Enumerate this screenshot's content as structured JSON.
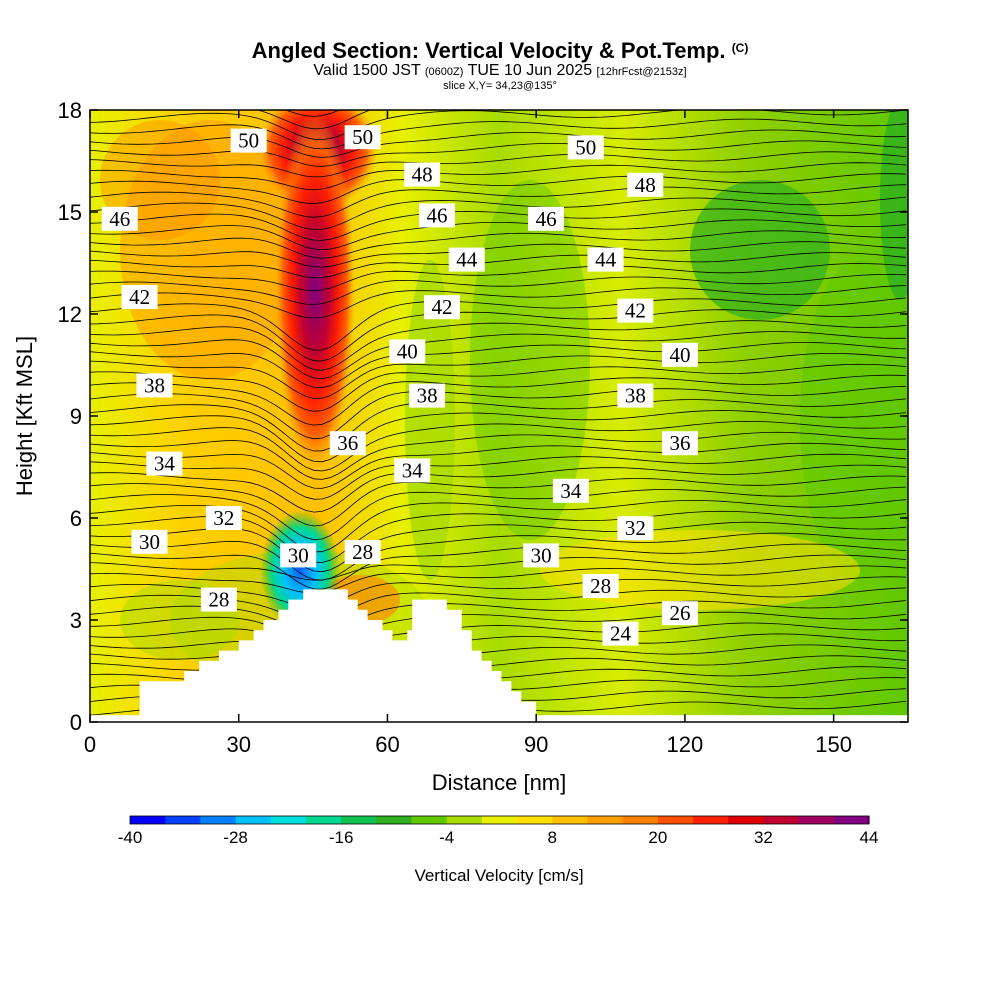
{
  "title": {
    "main": "Angled Section: Vertical Velocity & Pot.Temp.",
    "copyright": "(C)",
    "valid_prefix": "Valid 1500 JST",
    "valid_utc": "(0600Z)",
    "valid_date": "TUE 10 Jun 2025",
    "forecast": "[12hrFcst@2153z]",
    "slice": "slice X,Y= 34,23@135°"
  },
  "chart_data": {
    "type": "heatmap",
    "xlabel": "Distance [nm]",
    "ylabel": "Height [Kft MSL]",
    "xlim": [
      0,
      165
    ],
    "ylim": [
      0,
      18
    ],
    "xticks": [
      0,
      30,
      60,
      90,
      120,
      150
    ],
    "yticks": [
      0,
      3,
      6,
      9,
      12,
      15,
      18
    ],
    "colorbar": {
      "label": "Vertical Velocity [cm/s]",
      "ticks": [
        -40,
        -28,
        -16,
        -4,
        8,
        20,
        32,
        44
      ],
      "range": [
        -40,
        44
      ],
      "colors": [
        "#0000ff",
        "#0040ff",
        "#0080ff",
        "#00c0ff",
        "#00e0e0",
        "#00d890",
        "#10c050",
        "#30b020",
        "#60c800",
        "#a8dc00",
        "#e8f000",
        "#ffe000",
        "#ffc000",
        "#ffa000",
        "#ff8000",
        "#ff5000",
        "#ff2000",
        "#e00000",
        "#c00030",
        "#a00060",
        "#800080"
      ]
    },
    "contour_labels": [
      {
        "text": "50",
        "x": 32,
        "y": 17.1
      },
      {
        "text": "50",
        "x": 55,
        "y": 17.2
      },
      {
        "text": "50",
        "x": 100,
        "y": 16.9
      },
      {
        "text": "48",
        "x": 67,
        "y": 16.1
      },
      {
        "text": "48",
        "x": 112,
        "y": 15.8
      },
      {
        "text": "46",
        "x": 6,
        "y": 14.8
      },
      {
        "text": "46",
        "x": 70,
        "y": 14.9
      },
      {
        "text": "46",
        "x": 92,
        "y": 14.8
      },
      {
        "text": "44",
        "x": 76,
        "y": 13.6
      },
      {
        "text": "44",
        "x": 104,
        "y": 13.6
      },
      {
        "text": "42",
        "x": 10,
        "y": 12.5
      },
      {
        "text": "42",
        "x": 71,
        "y": 12.2
      },
      {
        "text": "42",
        "x": 110,
        "y": 12.1
      },
      {
        "text": "40",
        "x": 64,
        "y": 10.9
      },
      {
        "text": "40",
        "x": 119,
        "y": 10.8
      },
      {
        "text": "38",
        "x": 13,
        "y": 9.9
      },
      {
        "text": "38",
        "x": 68,
        "y": 9.6
      },
      {
        "text": "38",
        "x": 110,
        "y": 9.6
      },
      {
        "text": "36",
        "x": 52,
        "y": 8.2
      },
      {
        "text": "36",
        "x": 119,
        "y": 8.2
      },
      {
        "text": "34",
        "x": 15,
        "y": 7.6
      },
      {
        "text": "34",
        "x": 65,
        "y": 7.4
      },
      {
        "text": "34",
        "x": 97,
        "y": 6.8
      },
      {
        "text": "32",
        "x": 27,
        "y": 6.0
      },
      {
        "text": "32",
        "x": 110,
        "y": 5.7
      },
      {
        "text": "30",
        "x": 12,
        "y": 5.3
      },
      {
        "text": "30",
        "x": 42,
        "y": 4.9
      },
      {
        "text": "30",
        "x": 91,
        "y": 4.9
      },
      {
        "text": "28",
        "x": 55,
        "y": 5.0
      },
      {
        "text": "28",
        "x": 103,
        "y": 4.0
      },
      {
        "text": "28",
        "x": 26,
        "y": 3.6
      },
      {
        "text": "26",
        "x": 119,
        "y": 3.2
      },
      {
        "text": "24",
        "x": 107,
        "y": 2.6
      }
    ]
  }
}
